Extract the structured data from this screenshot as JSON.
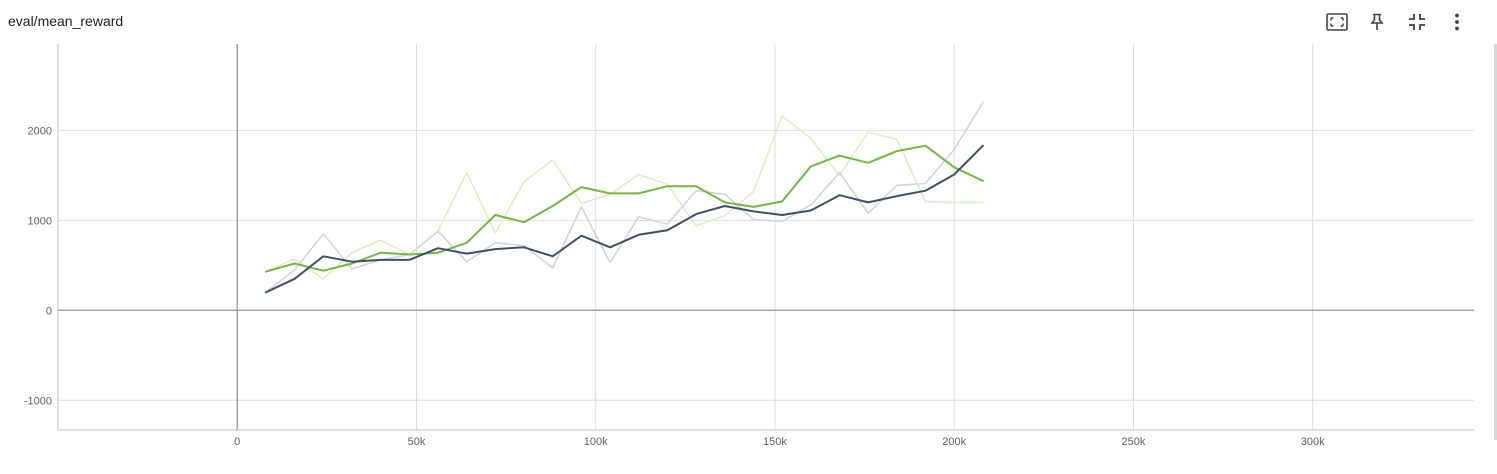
{
  "card": {
    "title": "eval/mean_reward"
  },
  "toolbar": [
    {
      "icon": "fit-domain-icon",
      "label": ""
    },
    {
      "icon": "pin-icon",
      "label": ""
    },
    {
      "icon": "collapse-icon",
      "label": ""
    },
    {
      "icon": "more-vert-icon",
      "label": ""
    }
  ],
  "colors": {
    "grid": "#dddddd",
    "axis": "#9e9e9e",
    "green_smoothed": "#74b741",
    "green_raw": "#dcefc8",
    "navy_smoothed": "#425066",
    "navy_raw": "#d2d4df"
  },
  "chart_data": {
    "type": "line",
    "title": "eval/mean_reward",
    "xlabel": "",
    "ylabel": "",
    "xlim": [
      -50000,
      345000
    ],
    "ylim": [
      -1330,
      2960
    ],
    "xticks": [
      0,
      50000,
      100000,
      150000,
      200000,
      250000,
      300000
    ],
    "xtick_labels": [
      "0",
      "50k",
      "100k",
      "150k",
      "200k",
      "250k",
      "300k"
    ],
    "yticks": [
      -1000,
      0,
      1000,
      2000
    ],
    "ytick_labels": [
      "-1000",
      "0",
      "1000",
      "2000"
    ],
    "grid": true,
    "x": [
      8000,
      16000,
      24000,
      32000,
      40000,
      48000,
      56000,
      64000,
      72000,
      80000,
      88000,
      96000,
      104000,
      112000,
      120000,
      128000,
      136000,
      144000,
      152000,
      160000,
      168000,
      176000,
      184000,
      192000,
      200000,
      208000
    ],
    "series": [
      {
        "values": [
          430,
          570,
          350,
          640,
          780,
          620,
          880,
          1530,
          860,
          1430,
          1670,
          1190,
          1290,
          1510,
          1400,
          940,
          1050,
          1320,
          2160,
          1910,
          1500,
          1980,
          1900,
          1210,
          1200,
          1200
        ],
        "style": "raw",
        "color": "#dcefc8"
      },
      {
        "values": [
          200,
          450,
          850,
          460,
          560,
          620,
          880,
          540,
          750,
          720,
          470,
          1150,
          530,
          1040,
          960,
          1330,
          1290,
          1010,
          990,
          1170,
          1530,
          1080,
          1390,
          1410,
          1790,
          2310
        ],
        "style": "raw",
        "color": "#d2d4df"
      },
      {
        "values": [
          430,
          520,
          440,
          520,
          640,
          620,
          640,
          750,
          1060,
          980,
          1160,
          1370,
          1300,
          1300,
          1380,
          1380,
          1200,
          1150,
          1210,
          1600,
          1720,
          1640,
          1770,
          1830,
          1590,
          1440
        ],
        "style": "smoothed",
        "color": "#74b741"
      },
      {
        "values": [
          200,
          350,
          600,
          540,
          560,
          560,
          690,
          630,
          680,
          700,
          600,
          830,
          700,
          840,
          890,
          1070,
          1160,
          1100,
          1060,
          1110,
          1280,
          1200,
          1270,
          1330,
          1510,
          1830
        ],
        "style": "smoothed",
        "color": "#425066"
      }
    ]
  }
}
